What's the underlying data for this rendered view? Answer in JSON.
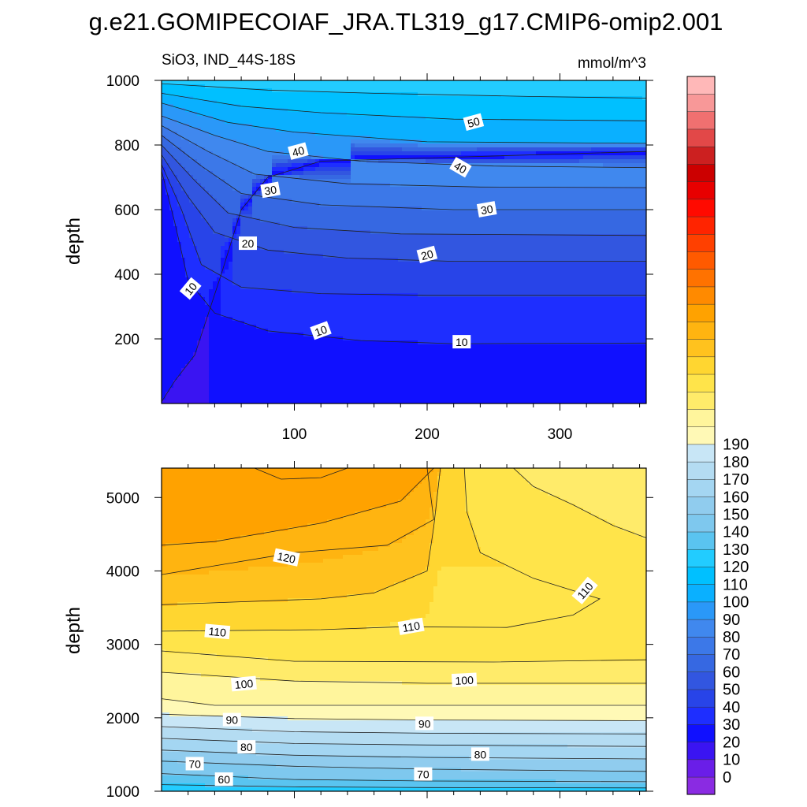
{
  "title": "g.e21.GOMIPECOIAF_JRA.TL319_g17.CMIP6-omip2.001",
  "subtitle_left": "SiO3, IND_44S-18S",
  "subtitle_right": "mmol/m^3",
  "chart_data": [
    {
      "type": "heatmap",
      "panel": "upper",
      "ylabel": "depth",
      "xlabel": "",
      "xlim": [
        0,
        365
      ],
      "ylim": [
        1000,
        0
      ],
      "x_ticks": [
        100,
        200,
        300
      ],
      "y_ticks": [
        200,
        400,
        600,
        800,
        1000
      ],
      "grid": false,
      "contour_interval": 5,
      "contours": [
        {
          "level": 5,
          "depth": [
            [
              0,
              5
            ],
            [
              10,
              70
            ],
            [
              25,
              150
            ],
            [
              45,
              400
            ],
            [
              60,
              600
            ],
            [
              80,
              700
            ],
            [
              120,
              750
            ],
            [
              365,
              780
            ]
          ]
        },
        {
          "level": 10,
          "depth": [
            [
              0,
              720
            ],
            [
              10,
              560
            ],
            [
              20,
              380
            ],
            [
              40,
              280
            ],
            [
              80,
              225
            ],
            [
              150,
              195
            ],
            [
              220,
              185
            ],
            [
              365,
              187
            ]
          ]
        },
        {
          "level": 15,
          "depth": [
            [
              0,
              740
            ],
            [
              15,
              600
            ],
            [
              30,
              430
            ],
            [
              60,
              360
            ],
            [
              120,
              340
            ],
            [
              200,
              335
            ],
            [
              365,
              335
            ]
          ]
        },
        {
          "level": 20,
          "depth": [
            [
              0,
              770
            ],
            [
              20,
              640
            ],
            [
              40,
              530
            ],
            [
              80,
              475
            ],
            [
              140,
              450
            ],
            [
              220,
              440
            ],
            [
              365,
              440
            ]
          ]
        },
        {
          "level": 25,
          "depth": [
            [
              0,
              800
            ],
            [
              25,
              690
            ],
            [
              50,
              590
            ],
            [
              100,
              545
            ],
            [
              180,
              525
            ],
            [
              365,
              520
            ]
          ]
        },
        {
          "level": 30,
          "depth": [
            [
              0,
              830
            ],
            [
              30,
              735
            ],
            [
              60,
              650
            ],
            [
              120,
              615
            ],
            [
              220,
              600
            ],
            [
              365,
              600
            ]
          ]
        },
        {
          "level": 35,
          "depth": [
            [
              0,
              860
            ],
            [
              35,
              780
            ],
            [
              70,
              710
            ],
            [
              140,
              680
            ],
            [
              240,
              670
            ],
            [
              365,
              668
            ]
          ]
        },
        {
          "level": 40,
          "depth": [
            [
              0,
              890
            ],
            [
              40,
              830
            ],
            [
              80,
              780
            ],
            [
              150,
              750
            ],
            [
              250,
              735
            ],
            [
              365,
              730
            ]
          ]
        },
        {
          "level": 45,
          "depth": [
            [
              0,
              930
            ],
            [
              50,
              870
            ],
            [
              100,
              840
            ],
            [
              200,
              810
            ],
            [
              365,
              805
            ]
          ]
        },
        {
          "level": 50,
          "depth": [
            [
              0,
              960
            ],
            [
              60,
              920
            ],
            [
              120,
              900
            ],
            [
              220,
              880
            ],
            [
              365,
              875
            ]
          ]
        },
        {
          "level": 55,
          "depth": [
            [
              0,
              990
            ],
            [
              80,
              970
            ],
            [
              160,
              960
            ],
            [
              280,
              950
            ],
            [
              365,
              945
            ]
          ]
        }
      ],
      "labels": [
        {
          "text": "10",
          "x": 22,
          "y": 355,
          "angle": -50
        },
        {
          "text": "10",
          "x": 120,
          "y": 225,
          "angle": -20
        },
        {
          "text": "10",
          "x": 226,
          "y": 190,
          "angle": 0
        },
        {
          "text": "20",
          "x": 65,
          "y": 495,
          "angle": 0
        },
        {
          "text": "20",
          "x": 200,
          "y": 460,
          "angle": -15
        },
        {
          "text": "30",
          "x": 82,
          "y": 660,
          "angle": -10
        },
        {
          "text": "30",
          "x": 245,
          "y": 600,
          "angle": -10
        },
        {
          "text": "40",
          "x": 103,
          "y": 780,
          "angle": -15
        },
        {
          "text": "40",
          "x": 225,
          "y": 730,
          "angle": 30
        },
        {
          "text": "50",
          "x": 235,
          "y": 870,
          "angle": -15
        }
      ]
    },
    {
      "type": "heatmap",
      "panel": "lower",
      "ylabel": "depth",
      "xlabel": "",
      "xlim": [
        0,
        365
      ],
      "ylim": [
        5400,
        1000
      ],
      "y_ticks": [
        1000,
        2000,
        3000,
        4000,
        5000
      ],
      "grid": false,
      "contour_interval": 5,
      "contours": [
        {
          "level": 60,
          "depth": [
            [
              0,
              1090
            ],
            [
              100,
              1060
            ],
            [
              200,
              1050
            ],
            [
              365,
              1045
            ]
          ]
        },
        {
          "level": 65,
          "depth": [
            [
              0,
              1240
            ],
            [
              100,
              1160
            ],
            [
              200,
              1140
            ],
            [
              365,
              1130
            ]
          ]
        },
        {
          "level": 70,
          "depth": [
            [
              0,
              1410
            ],
            [
              100,
              1340
            ],
            [
              200,
              1300
            ],
            [
              365,
              1270
            ]
          ]
        },
        {
          "level": 75,
          "depth": [
            [
              0,
              1560
            ],
            [
              100,
              1490
            ],
            [
              200,
              1460
            ],
            [
              365,
              1440
            ]
          ]
        },
        {
          "level": 80,
          "depth": [
            [
              0,
              1720
            ],
            [
              100,
              1650
            ],
            [
              200,
              1630
            ],
            [
              365,
              1610
            ]
          ]
        },
        {
          "level": 85,
          "depth": [
            [
              0,
              1880
            ],
            [
              100,
              1810
            ],
            [
              200,
              1790
            ],
            [
              365,
              1780
            ]
          ]
        },
        {
          "level": 90,
          "depth": [
            [
              0,
              2050
            ],
            [
              100,
              1990
            ],
            [
              200,
              1970
            ],
            [
              365,
              1960
            ]
          ]
        },
        {
          "level": 95,
          "depth": [
            [
              0,
              2260
            ],
            [
              40,
              2170
            ],
            [
              200,
              2170
            ],
            [
              365,
              2170
            ]
          ]
        },
        {
          "level": 100,
          "depth": [
            [
              0,
              2620
            ],
            [
              100,
              2500
            ],
            [
              200,
              2470
            ],
            [
              365,
              2470
            ]
          ]
        },
        {
          "level": 105,
          "depth": [
            [
              0,
              2910
            ],
            [
              100,
              2770
            ],
            [
              250,
              2760
            ],
            [
              365,
              2790
            ]
          ]
        },
        {
          "level": 110,
          "depth": [
            [
              0,
              3180
            ],
            [
              120,
              3200
            ],
            [
              180,
              3240
            ],
            [
              260,
              3230
            ],
            [
              310,
              3400
            ],
            [
              330,
              3620
            ],
            [
              280,
              3900
            ],
            [
              240,
              4250
            ],
            [
              230,
              4800
            ],
            [
              228,
              5400
            ]
          ]
        },
        {
          "level": 115,
          "depth": [
            [
              0,
              3540
            ],
            [
              120,
              3620
            ],
            [
              160,
              3700
            ],
            [
              200,
              4000
            ],
            [
              205,
              4600
            ],
            [
              210,
              5400
            ]
          ]
        },
        {
          "level": 120,
          "depth": [
            [
              0,
              3950
            ],
            [
              100,
              4250
            ],
            [
              170,
              4350
            ],
            [
              205,
              4700
            ],
            [
              200,
              5400
            ]
          ]
        },
        {
          "level": 125,
          "depth": [
            [
              0,
              4350
            ],
            [
              40,
              4400
            ],
            [
              120,
              4650
            ],
            [
              180,
              4950
            ],
            [
              205,
              5400
            ]
          ]
        },
        {
          "level": 130,
          "depth": [
            [
              140,
              5400
            ],
            [
              120,
              5270
            ],
            [
              90,
              5250
            ],
            [
              70,
              5400
            ]
          ]
        },
        {
          "level": 100,
          "depth": [
            [
              365,
              4450
            ],
            [
              340,
              4620
            ],
            [
              310,
              4900
            ],
            [
              280,
              5150
            ],
            [
              265,
              5400
            ]
          ]
        }
      ],
      "labels": [
        {
          "text": "60",
          "x": 47,
          "y": 1160,
          "angle": 0
        },
        {
          "text": "70",
          "x": 25,
          "y": 1370,
          "angle": 0
        },
        {
          "text": "70",
          "x": 197,
          "y": 1230,
          "angle": 0
        },
        {
          "text": "80",
          "x": 64,
          "y": 1600,
          "angle": 0
        },
        {
          "text": "80",
          "x": 240,
          "y": 1500,
          "angle": 0
        },
        {
          "text": "90",
          "x": 53,
          "y": 1970,
          "angle": 0
        },
        {
          "text": "90",
          "x": 198,
          "y": 1920,
          "angle": 0
        },
        {
          "text": "100",
          "x": 62,
          "y": 2460,
          "angle": -5
        },
        {
          "text": "100",
          "x": 228,
          "y": 2510,
          "angle": -3
        },
        {
          "text": "110",
          "x": 42,
          "y": 3170,
          "angle": 5
        },
        {
          "text": "110",
          "x": 188,
          "y": 3240,
          "angle": -10
        },
        {
          "text": "110",
          "x": 319,
          "y": 3730,
          "angle": -50
        },
        {
          "text": "120",
          "x": 94,
          "y": 4180,
          "angle": 12
        }
      ]
    }
  ],
  "colorbar": {
    "levels": [
      -5,
      0,
      5,
      10,
      15,
      20,
      25,
      30,
      35,
      40,
      45,
      50,
      55,
      60,
      65,
      70,
      75,
      80,
      85,
      90,
      95,
      100,
      105,
      110,
      115,
      120,
      125,
      130,
      135,
      140,
      145,
      150,
      155,
      160,
      165,
      170,
      175,
      180,
      185,
      190,
      195
    ],
    "colors": [
      "#8a2be2",
      "#6a1ee8",
      "#3a14f2",
      "#1010ff",
      "#1e2eff",
      "#2844e8",
      "#3256e0",
      "#3668e2",
      "#3c78e8",
      "#4088ee",
      "#2a98f8",
      "#0ab0ff",
      "#00c0ff",
      "#22ccff",
      "#5ac4f0",
      "#7ec8ee",
      "#90ccee",
      "#a4d6f2",
      "#b4dcf2",
      "#c8e6f6",
      "#fff9b6",
      "#fff59c",
      "#ffeb6a",
      "#ffe44a",
      "#ffd630",
      "#ffc21e",
      "#ffb410",
      "#ffa200",
      "#ff8a00",
      "#ff7200",
      "#ff5a00",
      "#ff4000",
      "#ff2400",
      "#ff0a00",
      "#e80000",
      "#cc0000",
      "#cc2020",
      "#e24848",
      "#f07070",
      "#f89898",
      "#ffb8b8"
    ],
    "tick_labels": [
      "0",
      "10",
      "20",
      "30",
      "40",
      "50",
      "60",
      "70",
      "80",
      "90",
      "100",
      "110",
      "120",
      "130",
      "140",
      "150",
      "160",
      "170",
      "180",
      "190"
    ]
  }
}
